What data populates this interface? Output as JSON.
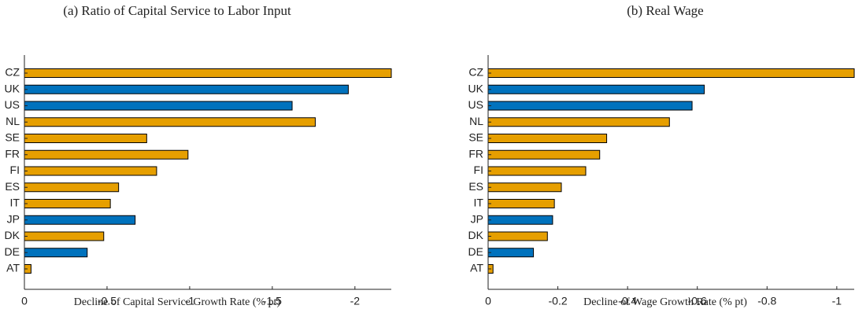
{
  "chart_data": [
    {
      "type": "barh",
      "title": "(a) Ratio of Capital Service to Labor Input",
      "xlabel": "Decline of Capital Service Growth Rate (% pt)",
      "categories": [
        "CZ",
        "UK",
        "US",
        "NL",
        "SE",
        "FR",
        "FI",
        "ES",
        "IT",
        "JP",
        "DK",
        "DE",
        "AT"
      ],
      "values": [
        -2.22,
        -1.96,
        -1.62,
        -1.76,
        -0.74,
        -0.99,
        -0.8,
        -0.57,
        -0.52,
        -0.67,
        -0.48,
        -0.38,
        -0.04
      ],
      "colors": [
        "#e69f00",
        "#0072bd",
        "#0072bd",
        "#e69f00",
        "#e69f00",
        "#e69f00",
        "#e69f00",
        "#e69f00",
        "#e69f00",
        "#0072bd",
        "#e69f00",
        "#0072bd",
        "#e69f00"
      ],
      "xlim": [
        0,
        -2.22
      ],
      "xticks": [
        0,
        -0.5,
        -1,
        -1.5,
        -2
      ]
    },
    {
      "type": "barh",
      "title": "(b) Real Wage",
      "xlabel": "Decline of Wage Growth Rate (% pt)",
      "categories": [
        "CZ",
        "UK",
        "US",
        "NL",
        "SE",
        "FR",
        "FI",
        "ES",
        "IT",
        "JP",
        "DK",
        "DE",
        "AT"
      ],
      "values": [
        -1.05,
        -0.62,
        -0.585,
        -0.52,
        -0.34,
        -0.32,
        -0.28,
        -0.21,
        -0.19,
        -0.185,
        -0.17,
        -0.13,
        -0.014
      ],
      "colors": [
        "#e69f00",
        "#0072bd",
        "#0072bd",
        "#e69f00",
        "#e69f00",
        "#e69f00",
        "#e69f00",
        "#e69f00",
        "#e69f00",
        "#0072bd",
        "#e69f00",
        "#0072bd",
        "#e69f00"
      ],
      "xlim": [
        0,
        -1.05
      ],
      "xticks": [
        0,
        -0.2,
        -0.4,
        -0.6,
        -0.8,
        -1
      ]
    }
  ]
}
